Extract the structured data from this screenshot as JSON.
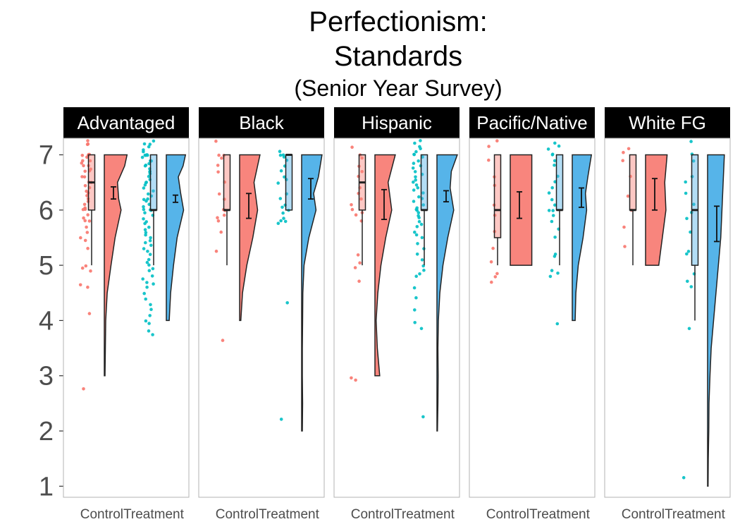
{
  "title": {
    "line1": "Perfectionism:",
    "line2": "Standards",
    "line3": "(Senior Year Survey)"
  },
  "colors": {
    "control": "#F8766D",
    "control_fill": "#F8857D",
    "treatment": "#00BFC4",
    "treatment_fill": "#56B4E9",
    "strip_bg": "#000000",
    "panel_border": "#b3b3b3"
  },
  "chart_data": {
    "type": "raincloud",
    "facets": [
      "Advantaged",
      "Black",
      "Hispanic",
      "Pacific/Native",
      "White FG"
    ],
    "categories": [
      "Control",
      "Treatment"
    ],
    "ylim": [
      0.8,
      7.3
    ],
    "yticks": [
      1,
      2,
      3,
      4,
      5,
      6,
      7
    ],
    "grid": false,
    "panels": [
      {
        "facet": "Advantaged",
        "groups": [
          {
            "name": "Control",
            "box": {
              "q1": 6.0,
              "median": 6.5,
              "q3": 7.0,
              "whisker_low": 5.0,
              "whisker_high": 7.0
            },
            "mean": 6.3,
            "ci": [
              6.2,
              6.42
            ],
            "violin": {
              "y": [
                3.0,
                4.0,
                4.5,
                5.0,
                5.5,
                6.0,
                6.2,
                6.5,
                6.8,
                7.0
              ],
              "density": [
                0.03,
                0.06,
                0.12,
                0.28,
                0.45,
                0.7,
                0.6,
                0.55,
                0.85,
                0.95
              ]
            },
            "points": [
              7.25,
              7.2,
              7.2,
              7.0,
              7.0,
              7.0,
              7.0,
              6.95,
              6.9,
              6.9,
              6.85,
              6.8,
              6.8,
              6.75,
              6.7,
              6.7,
              6.6,
              6.6,
              6.5,
              6.5,
              6.45,
              6.4,
              6.35,
              6.3,
              6.25,
              6.2,
              6.15,
              6.1,
              6.05,
              6.0,
              6.0,
              5.9,
              5.85,
              5.8,
              5.8,
              5.7,
              5.6,
              5.5,
              5.45,
              5.3,
              5.0,
              4.95,
              4.9,
              4.65,
              4.6,
              4.13,
              2.77
            ]
          },
          {
            "name": "Treatment",
            "box": {
              "q1": 6.0,
              "median": 6.0,
              "q3": 7.0,
              "whisker_low": 5.0,
              "whisker_high": 7.0
            },
            "mean": 6.2,
            "ci": [
              6.14,
              6.27
            ],
            "violin": {
              "y": [
                4.0,
                4.5,
                5.0,
                5.5,
                6.0,
                6.3,
                6.6,
                6.8,
                7.0
              ],
              "density": [
                0.12,
                0.18,
                0.3,
                0.45,
                0.72,
                0.6,
                0.5,
                0.7,
                0.8
              ]
            },
            "points": [
              7.25,
              7.2,
              7.2,
              7.15,
              7.1,
              7.05,
              7.0,
              7.0,
              7.0,
              7.0,
              6.95,
              6.9,
              6.9,
              6.85,
              6.8,
              6.8,
              6.75,
              6.7,
              6.7,
              6.65,
              6.6,
              6.55,
              6.5,
              6.5,
              6.45,
              6.4,
              6.35,
              6.3,
              6.25,
              6.2,
              6.2,
              6.15,
              6.1,
              6.05,
              6.0,
              6.0,
              6.0,
              5.95,
              5.9,
              5.85,
              5.8,
              5.75,
              5.7,
              5.65,
              5.6,
              5.55,
              5.5,
              5.45,
              5.4,
              5.35,
              5.3,
              5.25,
              5.2,
              5.1,
              5.05,
              5.0,
              4.95,
              4.9,
              4.8,
              4.75,
              4.7,
              4.65,
              4.6,
              4.5,
              4.4,
              4.3,
              4.2,
              4.1,
              4.0,
              3.95,
              3.8,
              3.75
            ]
          }
        ]
      },
      {
        "facet": "Black",
        "groups": [
          {
            "name": "Control",
            "box": {
              "q1": 6.0,
              "median": 6.0,
              "q3": 7.0,
              "whisker_low": 5.0,
              "whisker_high": 7.0
            },
            "mean": 6.07,
            "ci": [
              5.85,
              6.3
            ],
            "violin": {
              "y": [
                4.0,
                4.5,
                5.0,
                5.5,
                6.0,
                6.5,
                7.0
              ],
              "density": [
                0.05,
                0.12,
                0.3,
                0.55,
                0.75,
                0.6,
                0.85
              ]
            },
            "points": [
              7.25,
              7.0,
              7.0,
              6.95,
              6.8,
              6.7,
              6.5,
              6.3,
              6.2,
              6.0,
              6.0,
              5.9,
              5.85,
              5.8,
              5.6,
              5.25,
              3.65
            ]
          },
          {
            "name": "Treatment",
            "box": {
              "q1": 6.0,
              "median": 7.0,
              "q3": 7.0,
              "whisker_low": 6.0,
              "whisker_high": 7.0
            },
            "mean": 6.4,
            "ci": [
              6.2,
              6.57
            ],
            "violin": {
              "y": [
                2.0,
                2.5,
                3.0,
                3.5,
                4.0,
                4.5,
                5.0,
                5.5,
                6.0,
                6.3,
                6.6,
                7.0
              ],
              "density": [
                0.03,
                0.04,
                0.03,
                0.03,
                0.04,
                0.05,
                0.1,
                0.3,
                0.6,
                0.5,
                0.7,
                0.85
              ]
            },
            "points": [
              7.05,
              7.0,
              7.0,
              6.95,
              6.9,
              6.8,
              6.7,
              6.6,
              6.55,
              6.5,
              6.3,
              6.2,
              6.1,
              6.05,
              6.0,
              5.95,
              5.85,
              5.8,
              5.8,
              5.75,
              4.32,
              2.2
            ]
          }
        ]
      },
      {
        "facet": "Hispanic",
        "groups": [
          {
            "name": "Control",
            "box": {
              "q1": 6.0,
              "median": 6.5,
              "q3": 7.0,
              "whisker_low": 5.0,
              "whisker_high": 7.0
            },
            "mean": 6.1,
            "ci": [
              5.83,
              6.37
            ],
            "violin": {
              "y": [
                3.0,
                3.5,
                4.0,
                4.5,
                5.0,
                5.5,
                6.0,
                6.5,
                7.0
              ],
              "density": [
                0.2,
                0.1,
                0.05,
                0.12,
                0.25,
                0.45,
                0.7,
                0.55,
                0.85
              ]
            },
            "points": [
              7.15,
              7.0,
              6.95,
              6.8,
              6.7,
              6.6,
              6.4,
              6.3,
              6.2,
              6.1,
              6.0,
              5.95,
              5.9,
              5.8,
              5.2,
              5.05,
              4.95,
              4.7,
              2.97,
              2.93
            ]
          },
          {
            "name": "Treatment",
            "box": {
              "q1": 6.0,
              "median": 6.0,
              "q3": 7.0,
              "whisker_low": 5.0,
              "whisker_high": 7.0
            },
            "mean": 6.25,
            "ci": [
              6.15,
              6.35
            ],
            "violin": {
              "y": [
                2.0,
                2.5,
                3.0,
                3.5,
                4.0,
                4.5,
                5.0,
                5.5,
                6.0,
                6.4,
                6.7,
                7.0
              ],
              "density": [
                0.02,
                0.04,
                0.05,
                0.04,
                0.06,
                0.12,
                0.25,
                0.45,
                0.7,
                0.55,
                0.6,
                0.85
              ]
            },
            "points": [
              7.25,
              7.2,
              7.15,
              7.1,
              7.05,
              7.0,
              7.0,
              6.95,
              6.9,
              6.85,
              6.8,
              6.75,
              6.7,
              6.65,
              6.6,
              6.55,
              6.5,
              6.45,
              6.4,
              6.35,
              6.3,
              6.25,
              6.2,
              6.15,
              6.1,
              6.05,
              6.0,
              6.0,
              5.95,
              5.9,
              5.85,
              5.8,
              5.75,
              5.7,
              5.6,
              5.55,
              5.5,
              5.4,
              5.3,
              5.2,
              5.1,
              5.0,
              4.9,
              4.85,
              4.8,
              4.6,
              4.4,
              4.2,
              3.95,
              3.85,
              2.25
            ]
          }
        ]
      },
      {
        "facet": "Pacific/Native",
        "groups": [
          {
            "name": "Control",
            "box": {
              "q1": 5.5,
              "median": 6.0,
              "q3": 7.0,
              "whisker_low": 5.0,
              "whisker_high": 7.0
            },
            "mean": 6.08,
            "ci": [
              5.85,
              6.33
            ],
            "violin": {
              "y": [
                5.0,
                5.5,
                6.0,
                6.5,
                7.0
              ],
              "density": [
                0.9,
                0.9,
                0.9,
                0.9,
                0.9
              ]
            },
            "points": [
              7.25,
              7.15,
              6.9,
              6.6,
              6.45,
              6.1,
              5.9,
              5.6,
              5.3,
              5.05,
              4.85,
              4.8,
              4.7
            ]
          },
          {
            "name": "Treatment",
            "box": {
              "q1": 6.0,
              "median": 6.0,
              "q3": 7.0,
              "whisker_low": 5.0,
              "whisker_high": 7.0
            },
            "mean": 6.22,
            "ci": [
              6.05,
              6.4
            ],
            "violin": {
              "y": [
                4.0,
                4.5,
                5.0,
                5.5,
                6.0,
                6.3,
                6.6,
                7.0
              ],
              "density": [
                0.12,
                0.15,
                0.25,
                0.45,
                0.6,
                0.55,
                0.65,
                0.8
              ]
            },
            "points": [
              7.2,
              7.15,
              7.1,
              7.0,
              7.0,
              6.9,
              6.8,
              6.6,
              6.5,
              6.4,
              6.3,
              6.2,
              6.1,
              6.0,
              6.0,
              5.9,
              5.8,
              5.65,
              5.5,
              5.2,
              5.15,
              4.9,
              4.85,
              4.8,
              3.95
            ]
          }
        ]
      },
      {
        "facet": "White FG",
        "groups": [
          {
            "name": "Control",
            "box": {
              "q1": 6.0,
              "median": 6.0,
              "q3": 7.0,
              "whisker_low": 5.0,
              "whisker_high": 7.0
            },
            "mean": 6.28,
            "ci": [
              6.0,
              6.57
            ],
            "violin": {
              "y": [
                5.0,
                5.5,
                6.0,
                6.5,
                7.0
              ],
              "density": [
                0.55,
                0.7,
                0.85,
                0.8,
                0.9
              ]
            },
            "points": [
              7.12,
              7.05,
              6.9,
              6.6,
              6.25,
              6.0,
              5.7,
              5.35
            ]
          },
          {
            "name": "Treatment",
            "box": {
              "q1": 5.0,
              "median": 6.0,
              "q3": 7.0,
              "whisker_low": 4.0,
              "whisker_high": 7.0
            },
            "mean": 5.75,
            "ci": [
              5.43,
              6.07
            ],
            "violin": {
              "y": [
                1.0,
                1.5,
                2.0,
                2.5,
                3.0,
                3.5,
                4.0,
                4.5,
                5.0,
                5.5,
                6.0,
                6.5,
                7.0
              ],
              "density": [
                0.02,
                0.03,
                0.05,
                0.06,
                0.1,
                0.15,
                0.25,
                0.35,
                0.45,
                0.55,
                0.6,
                0.65,
                0.7
              ]
            },
            "points": [
              7.25,
              7.0,
              6.9,
              6.6,
              6.5,
              6.3,
              6.1,
              5.95,
              5.85,
              5.6,
              5.25,
              5.2,
              4.85,
              4.7,
              4.62,
              3.86,
              1.15
            ]
          }
        ]
      }
    ]
  }
}
